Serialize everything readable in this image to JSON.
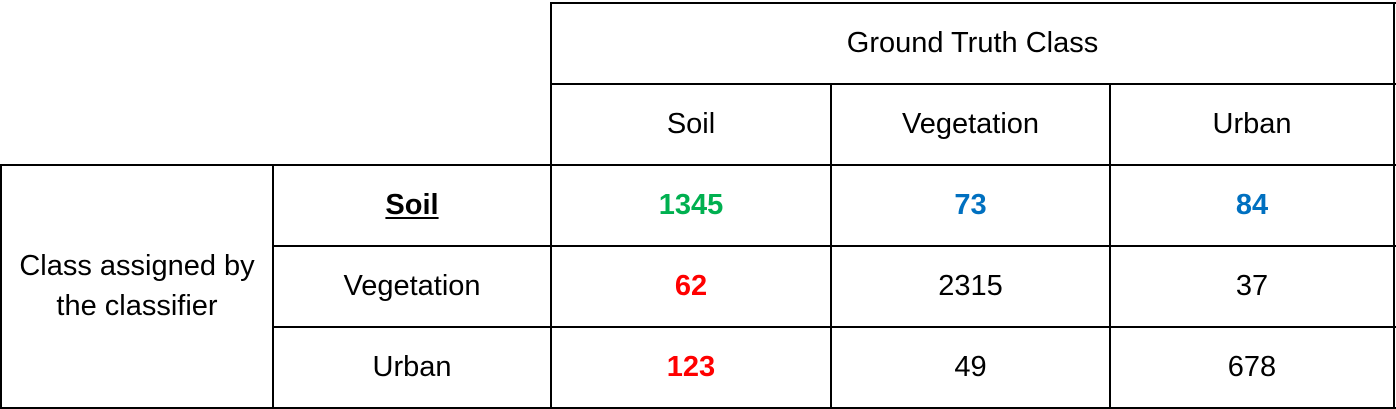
{
  "chart_data": {
    "type": "table",
    "column_group_header": "Ground Truth Class",
    "row_group_header": "Class assigned by the classifier",
    "columns": [
      "Soil",
      "Vegetation",
      "Urban"
    ],
    "rows": [
      {
        "label": "Soil",
        "values": [
          "1345",
          "73",
          "84"
        ]
      },
      {
        "label": "Vegetation",
        "values": [
          "62",
          "2315",
          "37"
        ]
      },
      {
        "label": "Urban",
        "values": [
          "123",
          "49",
          "678"
        ]
      }
    ]
  },
  "colors": {
    "green": "#00b050",
    "blue": "#0070c0",
    "red": "#ff0000",
    "black": "#000000"
  }
}
